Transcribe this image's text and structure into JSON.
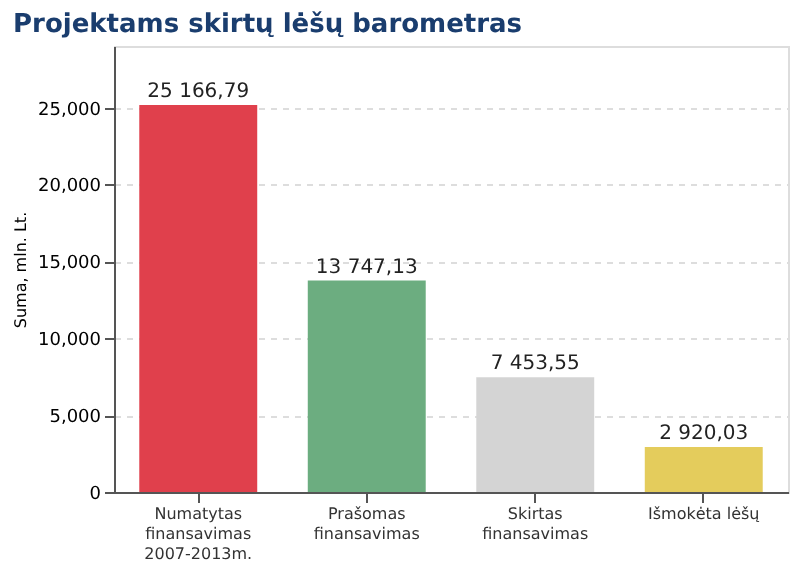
{
  "chart_data": {
    "type": "bar",
    "title": "Projektams skirtų lėšų barometras",
    "ylabel": "Suma, mln. Lt.",
    "categories": [
      "Numatytas\nfinansavimas\n2007-2013m.",
      "Prašomas\nfinansavimas",
      "Skirtas\nfinansavimas",
      "Išmokėta lėšų"
    ],
    "values": [
      25166.79,
      13747.13,
      7453.55,
      2920.03
    ],
    "colors": [
      "#e0404c",
      "#6cad80",
      "#d4d4d4",
      "#e4cc5c"
    ],
    "value_labels": [
      "25 166,79",
      "13 747,13",
      "7 453,55",
      "2 920,03"
    ],
    "ylim": [
      0,
      29000
    ],
    "yticks": [
      {
        "value": 0,
        "label": "0"
      },
      {
        "value": 5000,
        "label": "5,000"
      },
      {
        "value": 10000,
        "label": "10,000"
      },
      {
        "value": 15000,
        "label": "15,000"
      },
      {
        "value": 20000,
        "label": "20,000"
      },
      {
        "value": 25000,
        "label": "25,000"
      }
    ],
    "grid": "y"
  }
}
